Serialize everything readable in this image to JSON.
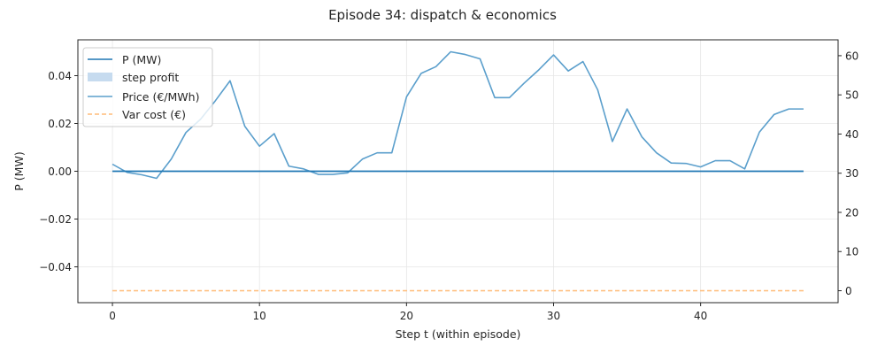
{
  "chart_data": {
    "type": "line",
    "title": "Episode 34: dispatch & economics",
    "xlabel": "Step t (within episode)",
    "ylabel": "P (MW)",
    "y2label": "",
    "xlim": [
      -2.35,
      49.35
    ],
    "ylim": [
      -0.055,
      0.055
    ],
    "y2lim": [
      -3.05,
      64.05
    ],
    "xticks": [
      0,
      10,
      20,
      30,
      40
    ],
    "yticks": [
      -0.04,
      -0.02,
      0.0,
      0.02,
      0.04
    ],
    "yticks_text": [
      "−0.04",
      "−0.02",
      "0.00",
      "0.02",
      "0.04"
    ],
    "y2ticks": [
      0,
      10,
      20,
      30,
      40,
      50,
      60
    ],
    "grid": true,
    "legend_placement": "top-left",
    "colors": {
      "power": "#1f77b4",
      "profit": "#c6dbef",
      "price": "#5b9fcc",
      "varcost": "#ffbb78"
    },
    "series": [
      {
        "name": "P (MW)",
        "axis": "left",
        "style": "solid",
        "x": [
          0,
          1,
          2,
          3,
          4,
          5,
          6,
          7,
          8,
          9,
          10,
          11,
          12,
          13,
          14,
          15,
          16,
          17,
          18,
          19,
          20,
          21,
          22,
          23,
          24,
          25,
          26,
          27,
          28,
          29,
          30,
          31,
          32,
          33,
          34,
          35,
          36,
          37,
          38,
          39,
          40,
          41,
          42,
          43,
          44,
          45,
          46,
          47
        ],
        "values": [
          0,
          0,
          0,
          0,
          0,
          0,
          0,
          0,
          0,
          0,
          0,
          0,
          0,
          0,
          0,
          0,
          0,
          0,
          0,
          0,
          0,
          0,
          0,
          0,
          0,
          0,
          0,
          0,
          0,
          0,
          0,
          0,
          0,
          0,
          0,
          0,
          0,
          0,
          0,
          0,
          0,
          0,
          0,
          0,
          0,
          0,
          0,
          0
        ]
      },
      {
        "name": "step profit",
        "axis": "left",
        "style": "area",
        "x": [
          0,
          1,
          2,
          3,
          4,
          5,
          6,
          7,
          8,
          9,
          10,
          11,
          12,
          13,
          14,
          15,
          16,
          17,
          18,
          19,
          20,
          21,
          22,
          23,
          24,
          25,
          26,
          27,
          28,
          29,
          30,
          31,
          32,
          33,
          34,
          35,
          36,
          37,
          38,
          39,
          40,
          41,
          42,
          43,
          44,
          45,
          46,
          47
        ],
        "values": [
          0,
          0,
          0,
          0,
          0,
          0,
          0,
          0,
          0,
          0,
          0,
          0,
          0,
          0,
          0,
          0,
          0,
          0,
          0,
          0,
          0,
          0,
          0,
          0,
          0,
          0,
          0,
          0,
          0,
          0,
          0,
          0,
          0,
          0,
          0,
          0,
          0,
          0,
          0,
          0,
          0,
          0,
          0,
          0,
          0,
          0,
          0,
          0
        ]
      },
      {
        "name": "Price (€/MWh)",
        "axis": "right",
        "style": "solid",
        "x": [
          0,
          1,
          2,
          3,
          4,
          5,
          6,
          7,
          8,
          9,
          10,
          11,
          12,
          13,
          14,
          15,
          16,
          17,
          18,
          19,
          20,
          21,
          22,
          23,
          24,
          25,
          26,
          27,
          28,
          29,
          30,
          31,
          32,
          33,
          34,
          35,
          36,
          37,
          38,
          39,
          40,
          41,
          42,
          43,
          44,
          45,
          46,
          47
        ],
        "values": [
          32.3,
          30.2,
          29.6,
          28.7,
          33.6,
          40.4,
          43.8,
          48.5,
          53.6,
          42.0,
          36.9,
          40.1,
          31.8,
          31.1,
          29.7,
          29.7,
          30.1,
          33.6,
          35.2,
          35.2,
          49.5,
          55.5,
          57.2,
          61.0,
          60.3,
          59.2,
          49.3,
          49.3,
          53.0,
          56.4,
          60.2,
          56.1,
          58.5,
          51.3,
          38.1,
          46.4,
          39.3,
          35.2,
          32.6,
          32.5,
          31.6,
          33.2,
          33.2,
          31.1,
          40.5,
          45.0,
          46.4,
          46.4
        ]
      },
      {
        "name": "Var cost (€)",
        "axis": "right",
        "style": "dashed",
        "x": [
          0,
          1,
          2,
          3,
          4,
          5,
          6,
          7,
          8,
          9,
          10,
          11,
          12,
          13,
          14,
          15,
          16,
          17,
          18,
          19,
          20,
          21,
          22,
          23,
          24,
          25,
          26,
          27,
          28,
          29,
          30,
          31,
          32,
          33,
          34,
          35,
          36,
          37,
          38,
          39,
          40,
          41,
          42,
          43,
          44,
          45,
          46,
          47
        ],
        "values": [
          0,
          0,
          0,
          0,
          0,
          0,
          0,
          0,
          0,
          0,
          0,
          0,
          0,
          0,
          0,
          0,
          0,
          0,
          0,
          0,
          0,
          0,
          0,
          0,
          0,
          0,
          0,
          0,
          0,
          0,
          0,
          0,
          0,
          0,
          0,
          0,
          0,
          0,
          0,
          0,
          0,
          0,
          0,
          0,
          0,
          0,
          0,
          0
        ]
      }
    ]
  }
}
